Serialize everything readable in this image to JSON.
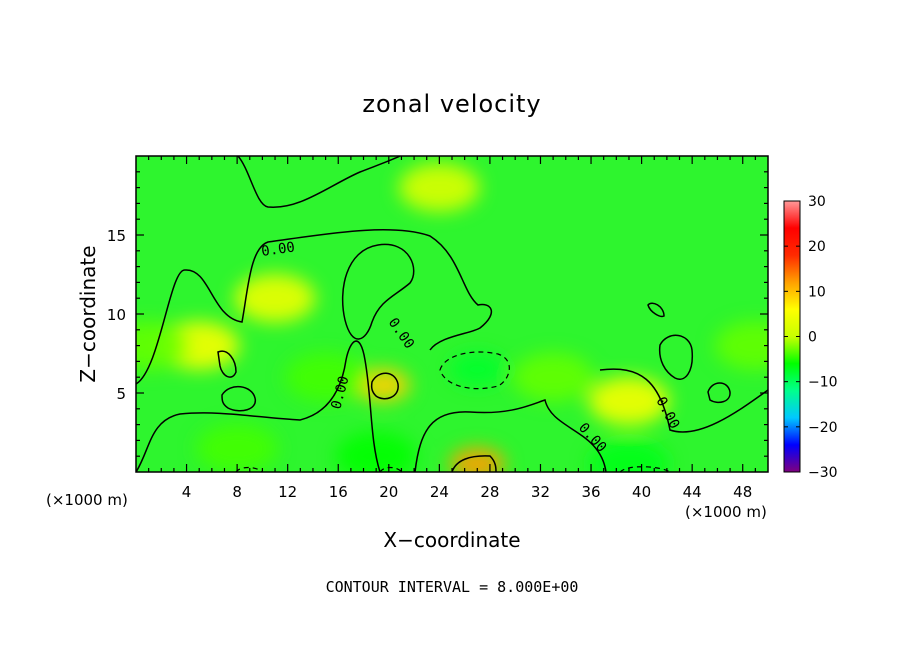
{
  "chart_data": {
    "type": "heatmap",
    "title": "zonal velocity",
    "xlabel": "X−coordinate",
    "ylabel": "Z−coordinate",
    "x_unit_left": "(×1000 m)",
    "x_unit_right": "(×1000 m)",
    "xlim": [
      0,
      50
    ],
    "ylim": [
      0,
      20
    ],
    "x_ticks": [
      4,
      8,
      12,
      16,
      20,
      24,
      28,
      32,
      36,
      40,
      44,
      48
    ],
    "x_tick_labels": [
      "4",
      "8",
      "12",
      "16",
      "20",
      "24",
      "28",
      "32",
      "36",
      "40",
      "44",
      "48"
    ],
    "y_ticks": [
      5,
      10,
      15
    ],
    "y_tick_labels": [
      "5",
      "10",
      "15"
    ],
    "footer": "CONTOUR INTERVAL = 8.000E+00",
    "contour_label": "0.00",
    "colorbar": {
      "range": [
        -30,
        30
      ],
      "ticks": [
        30,
        20,
        10,
        0,
        -10,
        -20,
        -30
      ],
      "tick_labels": [
        "30",
        "20",
        "10",
        "0",
        "−10",
        "−20",
        "−30"
      ],
      "colors": [
        "#7f007f",
        "#0000ff",
        "#00c8ff",
        "#00ff8c",
        "#00ff00",
        "#c8ff00",
        "#ffff00",
        "#ffa000",
        "#ff2a00",
        "#ff0000",
        "#ff9999"
      ]
    },
    "features": [
      {
        "kind": "positive",
        "x": 5,
        "z": 8,
        "value": 5
      },
      {
        "kind": "positive",
        "x": 11,
        "z": 11,
        "value": 4
      },
      {
        "kind": "positive",
        "x": 19.5,
        "z": 5.5,
        "value": 9
      },
      {
        "kind": "positive",
        "x": 27,
        "z": 0.5,
        "value": 12
      },
      {
        "kind": "positive",
        "x": 39,
        "z": 4.5,
        "value": 5
      },
      {
        "kind": "positive",
        "x": 24,
        "z": 18,
        "value": 2
      },
      {
        "kind": "negative",
        "x": 27,
        "z": 6.5,
        "value": -8
      },
      {
        "kind": "negative",
        "x": 15,
        "z": 6,
        "value": -4
      },
      {
        "kind": "negative",
        "x": 19,
        "z": 1,
        "value": -6
      },
      {
        "kind": "negative",
        "x": 8,
        "z": 1.5,
        "value": -4
      },
      {
        "kind": "negative",
        "x": 39,
        "z": 0.5,
        "value": -7
      },
      {
        "kind": "negative",
        "x": 49,
        "z": 8,
        "value": -3
      },
      {
        "kind": "negative",
        "x": 1,
        "z": 8,
        "value": -3
      },
      {
        "kind": "negative",
        "x": 33,
        "z": 6,
        "value": -3
      }
    ]
  }
}
